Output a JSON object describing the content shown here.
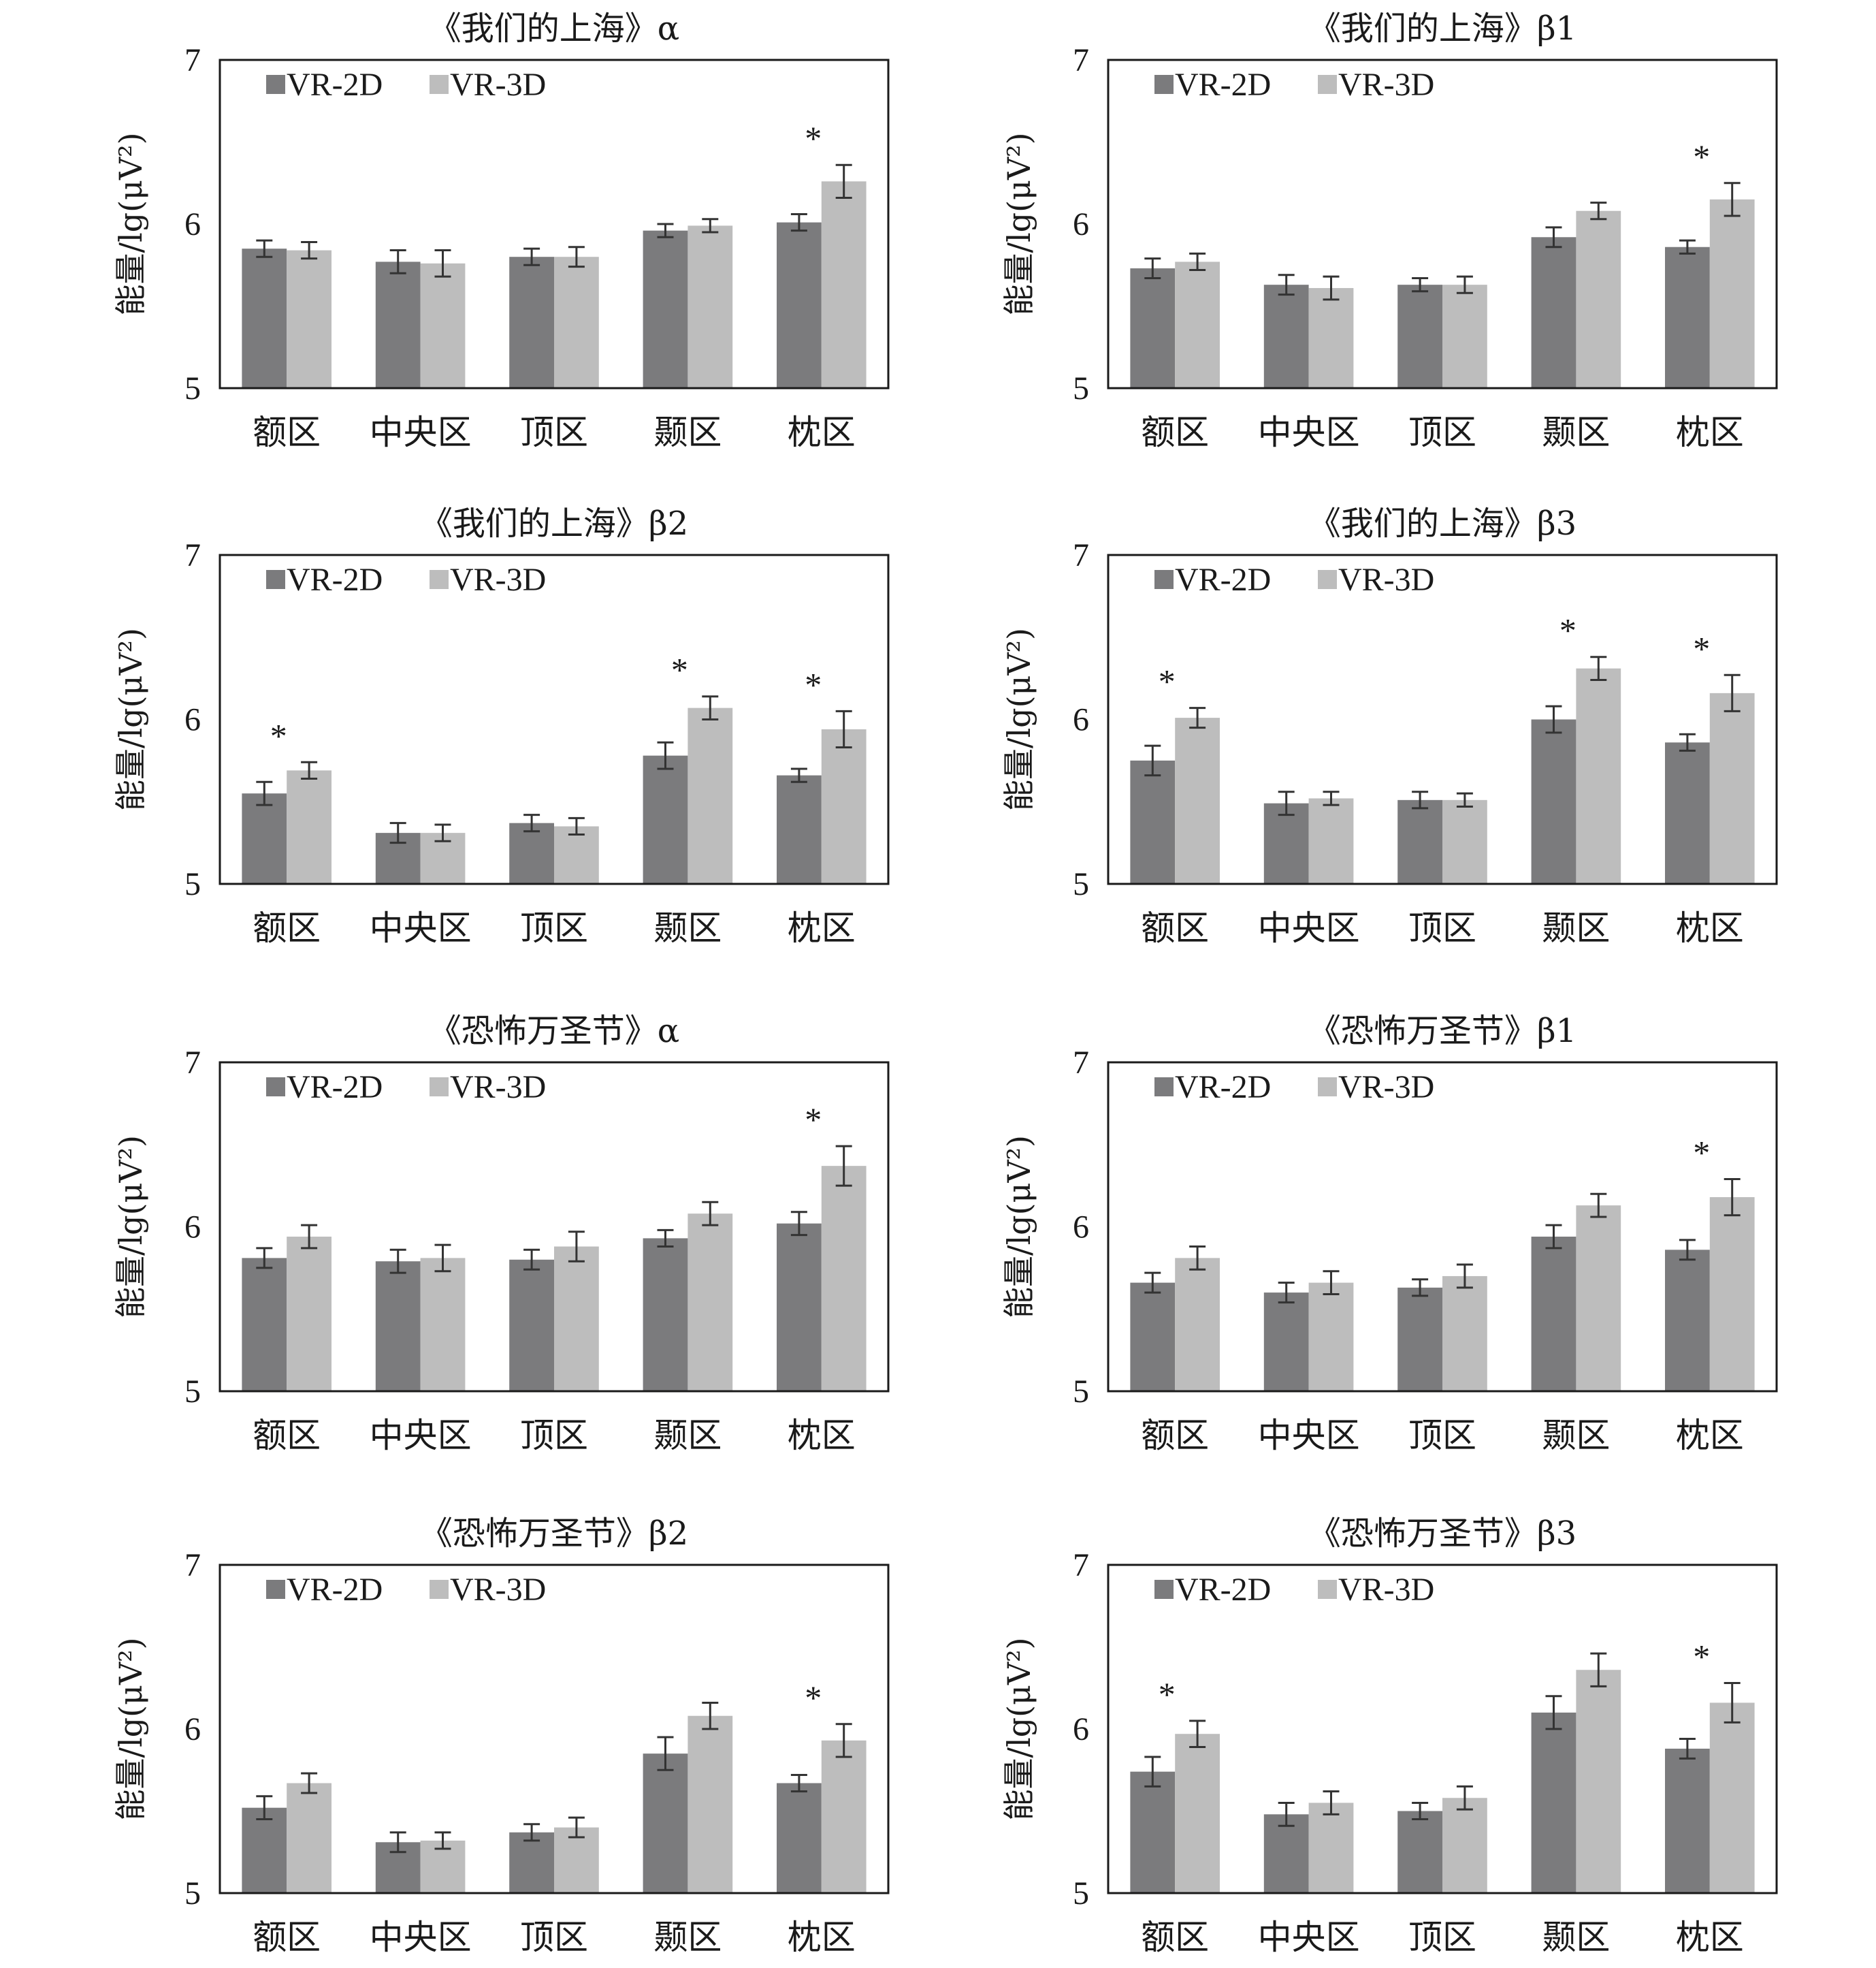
{
  "chart_data": [
    {
      "type": "bar",
      "title": "《我们的上海》α",
      "ylabel": "能量/lg(μV²)",
      "ylim": [
        5,
        7
      ],
      "yticks": [
        "5",
        "6",
        "7"
      ],
      "categories": [
        "额区",
        "中央区",
        "顶区",
        "颞区",
        "枕区"
      ],
      "legend": "top-left",
      "series": [
        {
          "name": "VR-2D",
          "color": "#7b7b7d",
          "values": [
            5.85,
            5.77,
            5.8,
            5.96,
            6.01
          ],
          "errors": [
            0.05,
            0.07,
            0.05,
            0.04,
            0.05
          ]
        },
        {
          "name": "VR-3D",
          "color": "#bdbdbd",
          "values": [
            5.84,
            5.76,
            5.8,
            5.99,
            6.26
          ],
          "errors": [
            0.05,
            0.08,
            0.06,
            0.04,
            0.1
          ]
        }
      ],
      "significance": [
        "",
        "",
        "",
        "",
        "*"
      ]
    },
    {
      "type": "bar",
      "title": "《我们的上海》β1",
      "ylabel": "能量/lg(μV²)",
      "ylim": [
        5,
        7
      ],
      "yticks": [
        "5",
        "6",
        "7"
      ],
      "categories": [
        "额区",
        "中央区",
        "顶区",
        "颞区",
        "枕区"
      ],
      "legend": "top-left",
      "series": [
        {
          "name": "VR-2D",
          "color": "#7b7b7d",
          "values": [
            5.73,
            5.63,
            5.63,
            5.92,
            5.86
          ],
          "errors": [
            0.06,
            0.06,
            0.04,
            0.06,
            0.04
          ]
        },
        {
          "name": "VR-3D",
          "color": "#bdbdbd",
          "values": [
            5.77,
            5.61,
            5.63,
            6.08,
            6.15
          ],
          "errors": [
            0.05,
            0.07,
            0.05,
            0.05,
            0.1
          ]
        }
      ],
      "significance": [
        "",
        "",
        "",
        "",
        "*"
      ]
    },
    {
      "type": "bar",
      "title": "《我们的上海》β2",
      "ylabel": "能量/lg(μV²)",
      "ylim": [
        5,
        7
      ],
      "yticks": [
        "5",
        "6",
        "7"
      ],
      "categories": [
        "额区",
        "中央区",
        "顶区",
        "颞区",
        "枕区"
      ],
      "legend": "top-left",
      "series": [
        {
          "name": "VR-2D",
          "color": "#7b7b7d",
          "values": [
            5.55,
            5.31,
            5.37,
            5.78,
            5.66
          ],
          "errors": [
            0.07,
            0.06,
            0.05,
            0.08,
            0.04
          ]
        },
        {
          "name": "VR-3D",
          "color": "#bdbdbd",
          "values": [
            5.69,
            5.31,
            5.35,
            6.07,
            5.94
          ],
          "errors": [
            0.05,
            0.05,
            0.05,
            0.07,
            0.11
          ]
        }
      ],
      "significance": [
        "*",
        "",
        "",
        "*",
        "*"
      ]
    },
    {
      "type": "bar",
      "title": "《我们的上海》β3",
      "ylabel": "能量/lg(μV²)",
      "ylim": [
        5,
        7
      ],
      "yticks": [
        "5",
        "6",
        "7"
      ],
      "categories": [
        "额区",
        "中央区",
        "顶区",
        "颞区",
        "枕区"
      ],
      "legend": "top-left",
      "series": [
        {
          "name": "VR-2D",
          "color": "#7b7b7d",
          "values": [
            5.75,
            5.49,
            5.51,
            6.0,
            5.86
          ],
          "errors": [
            0.09,
            0.07,
            0.05,
            0.08,
            0.05
          ]
        },
        {
          "name": "VR-3D",
          "color": "#bdbdbd",
          "values": [
            6.01,
            5.52,
            5.51,
            6.31,
            6.16
          ],
          "errors": [
            0.06,
            0.04,
            0.04,
            0.07,
            0.11
          ]
        }
      ],
      "significance": [
        "*",
        "",
        "",
        "*",
        "*"
      ]
    },
    {
      "type": "bar",
      "title": "《恐怖万圣节》α",
      "ylabel": "能量/lg(μV²)",
      "ylim": [
        5,
        7
      ],
      "yticks": [
        "5",
        "6",
        "7"
      ],
      "categories": [
        "额区",
        "中央区",
        "顶区",
        "颞区",
        "枕区"
      ],
      "legend": "top-left",
      "series": [
        {
          "name": "VR-2D",
          "color": "#7b7b7d",
          "values": [
            5.81,
            5.79,
            5.8,
            5.93,
            6.02
          ],
          "errors": [
            0.06,
            0.07,
            0.06,
            0.05,
            0.07
          ]
        },
        {
          "name": "VR-3D",
          "color": "#bdbdbd",
          "values": [
            5.94,
            5.81,
            5.88,
            6.08,
            6.37
          ],
          "errors": [
            0.07,
            0.08,
            0.09,
            0.07,
            0.12
          ]
        }
      ],
      "significance": [
        "",
        "",
        "",
        "",
        "*"
      ]
    },
    {
      "type": "bar",
      "title": "《恐怖万圣节》β1",
      "ylabel": "能量/lg(μV²)",
      "ylim": [
        5,
        7
      ],
      "yticks": [
        "5",
        "6",
        "7"
      ],
      "categories": [
        "额区",
        "中央区",
        "顶区",
        "颞区",
        "枕区"
      ],
      "legend": "top-left",
      "series": [
        {
          "name": "VR-2D",
          "color": "#7b7b7d",
          "values": [
            5.66,
            5.6,
            5.63,
            5.94,
            5.86
          ],
          "errors": [
            0.06,
            0.06,
            0.05,
            0.07,
            0.06
          ]
        },
        {
          "name": "VR-3D",
          "color": "#bdbdbd",
          "values": [
            5.81,
            5.66,
            5.7,
            6.13,
            6.18
          ],
          "errors": [
            0.07,
            0.07,
            0.07,
            0.07,
            0.11
          ]
        }
      ],
      "significance": [
        "",
        "",
        "",
        "",
        "*"
      ]
    },
    {
      "type": "bar",
      "title": "《恐怖万圣节》β2",
      "ylabel": "能量/lg(μV²)",
      "ylim": [
        5,
        7
      ],
      "yticks": [
        "5",
        "6",
        "7"
      ],
      "categories": [
        "额区",
        "中央区",
        "顶区",
        "颞区",
        "枕区"
      ],
      "legend": "top-left",
      "series": [
        {
          "name": "VR-2D",
          "color": "#7b7b7d",
          "values": [
            5.52,
            5.31,
            5.37,
            5.85,
            5.67
          ],
          "errors": [
            0.07,
            0.06,
            0.05,
            0.1,
            0.05
          ]
        },
        {
          "name": "VR-3D",
          "color": "#bdbdbd",
          "values": [
            5.67,
            5.32,
            5.4,
            6.08,
            5.93
          ],
          "errors": [
            0.06,
            0.05,
            0.06,
            0.08,
            0.1
          ]
        }
      ],
      "significance": [
        "",
        "",
        "",
        "",
        "*"
      ]
    },
    {
      "type": "bar",
      "title": "《恐怖万圣节》β3",
      "ylabel": "能量/lg(μV²)",
      "ylim": [
        5,
        7
      ],
      "yticks": [
        "5",
        "6",
        "7"
      ],
      "categories": [
        "额区",
        "中央区",
        "顶区",
        "颞区",
        "枕区"
      ],
      "legend": "top-left",
      "series": [
        {
          "name": "VR-2D",
          "color": "#7b7b7d",
          "values": [
            5.74,
            5.48,
            5.5,
            6.1,
            5.88
          ],
          "errors": [
            0.09,
            0.07,
            0.05,
            0.1,
            0.06
          ]
        },
        {
          "name": "VR-3D",
          "color": "#bdbdbd",
          "values": [
            5.97,
            5.55,
            5.58,
            6.36,
            6.16
          ],
          "errors": [
            0.08,
            0.07,
            0.07,
            0.1,
            0.12
          ]
        }
      ],
      "significance": [
        "*",
        "",
        "",
        "",
        "*"
      ]
    }
  ]
}
